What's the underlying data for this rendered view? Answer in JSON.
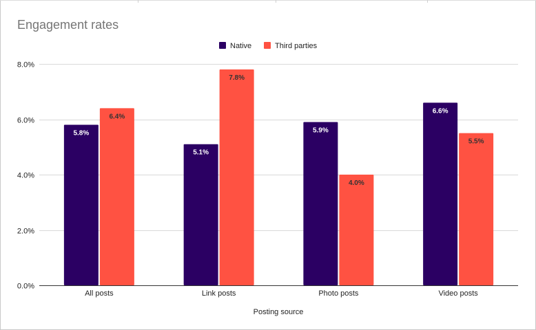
{
  "chart_data": {
    "type": "bar",
    "title": "Engagement rates",
    "xlabel": "Posting source",
    "ylabel": "",
    "categories": [
      "All posts",
      "Link posts",
      "Photo posts",
      "Video posts"
    ],
    "series": [
      {
        "name": "Native",
        "values": [
          5.8,
          5.1,
          5.9,
          6.6
        ],
        "labels": [
          "5.8%",
          "5.1%",
          "5.9%",
          "6.6%"
        ],
        "color": "#2b0063",
        "label_color": "#ffffff"
      },
      {
        "name": "Third parties",
        "values": [
          6.4,
          7.8,
          4.0,
          5.5
        ],
        "labels": [
          "6.4%",
          "7.8%",
          "4.0%",
          "5.5%"
        ],
        "color": "#ff5242",
        "label_color": "#333333"
      }
    ],
    "ylim": [
      0,
      8
    ],
    "yticks": [
      0,
      2,
      4,
      6,
      8
    ],
    "ytick_labels": [
      "0.0%",
      "2.0%",
      "4.0%",
      "6.0%",
      "8.0%"
    ],
    "legend_position": "top-center",
    "grid": true
  }
}
